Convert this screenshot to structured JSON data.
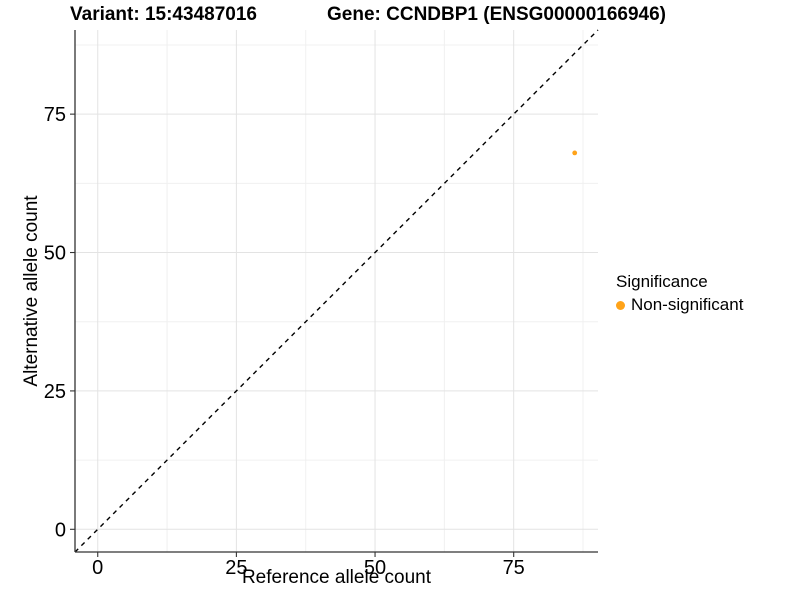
{
  "chart_data": {
    "type": "scatter",
    "title_left": "Variant: 15:43487016",
    "title_right": "Gene: CCNDBP1 (ENSG00000166946)",
    "xlabel": "Reference allele count",
    "ylabel": "Alternative allele count",
    "xlim": [
      -4.1,
      90.2
    ],
    "ylim": [
      -4.1,
      90.2
    ],
    "x_ticks": [
      0,
      25,
      50,
      75
    ],
    "y_ticks": [
      0,
      25,
      50,
      75
    ],
    "x_minor_ticks": [
      12.5,
      37.5,
      62.5,
      87.5
    ],
    "y_minor_ticks": [
      12.5,
      37.5,
      62.5,
      87.5
    ],
    "grid": true,
    "reference_line": {
      "type": "identity",
      "style": "dashed",
      "color": "#000000"
    },
    "series": [
      {
        "name": "Non-significant",
        "color": "#FFA319",
        "points": [
          {
            "x": 86,
            "y": 68
          }
        ]
      }
    ],
    "legend": {
      "title": "Significance",
      "position": "right",
      "items": [
        {
          "label": "Non-significant",
          "color": "#FFA319"
        }
      ]
    },
    "colors": {
      "background": "#FFFFFF",
      "axis_line": "#333333",
      "tick_mark": "#333333",
      "grid_major": "#E3E3E3",
      "grid_minor": "#F0F0F0",
      "text": "#000000"
    }
  }
}
